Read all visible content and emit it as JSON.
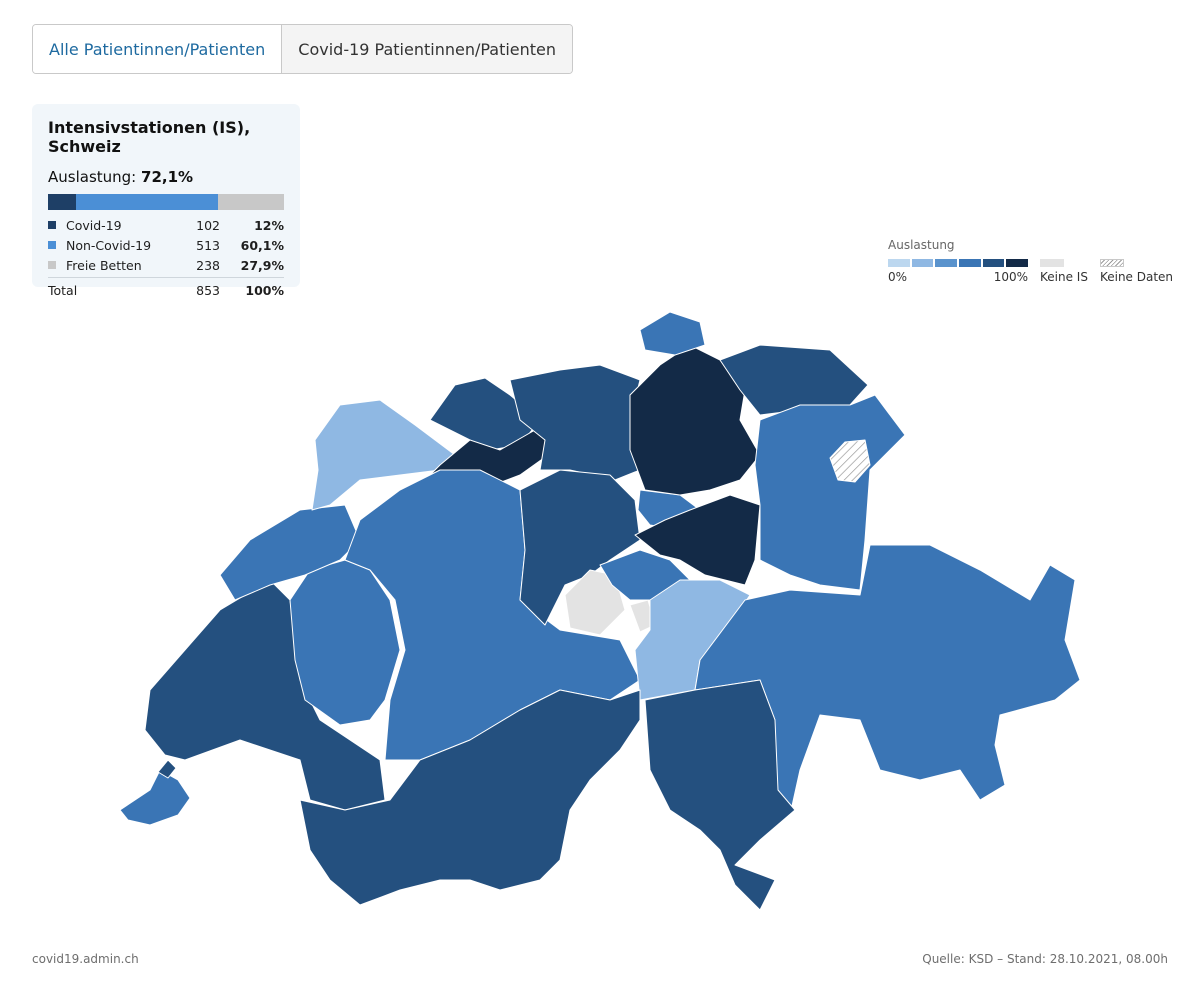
{
  "tabs": [
    {
      "label": "Alle Patientinnen/Patienten"
    },
    {
      "label": "Covid-19 Patientinnen/Patienten"
    }
  ],
  "summary": {
    "title": "Intensivstationen (IS), Schweiz",
    "utilization_label": "Auslastung:",
    "utilization_value": "72,1%",
    "rows": [
      {
        "label": "Covid-19",
        "count": "102",
        "percent": "12%",
        "fraction": 0.12,
        "color": "#1e3f66"
      },
      {
        "label": "Non-Covid-19",
        "count": "513",
        "percent": "60,1%",
        "fraction": 0.601,
        "color": "#4b8fd6"
      },
      {
        "label": "Freie Betten",
        "count": "238",
        "percent": "27,9%",
        "fraction": 0.279,
        "color": "#c8c8c8"
      }
    ],
    "total": {
      "label": "Total",
      "count": "853",
      "percent": "100%"
    }
  },
  "legend": {
    "title": "Auslastung",
    "min_label": "0%",
    "max_label": "100%",
    "ramp_colors": [
      "#bcd7ef",
      "#8fb8e3",
      "#5a93cd",
      "#3a75b5",
      "#24507f",
      "#132a47"
    ],
    "no_icu_label": "Keine IS",
    "no_icu_color": "#e3e3e3",
    "no_data_label": "Keine Daten"
  },
  "map": {
    "colors": {
      "light": "#8fb8e3",
      "medium": "#3a75b5",
      "dark": "#24507f",
      "darkest": "#132a47",
      "none": "#e3e3e3"
    }
  },
  "footer": {
    "source_site": "covid19.admin.ch",
    "source_note": "Quelle: KSD – Stand: 28.10.2021, 08.00h"
  }
}
